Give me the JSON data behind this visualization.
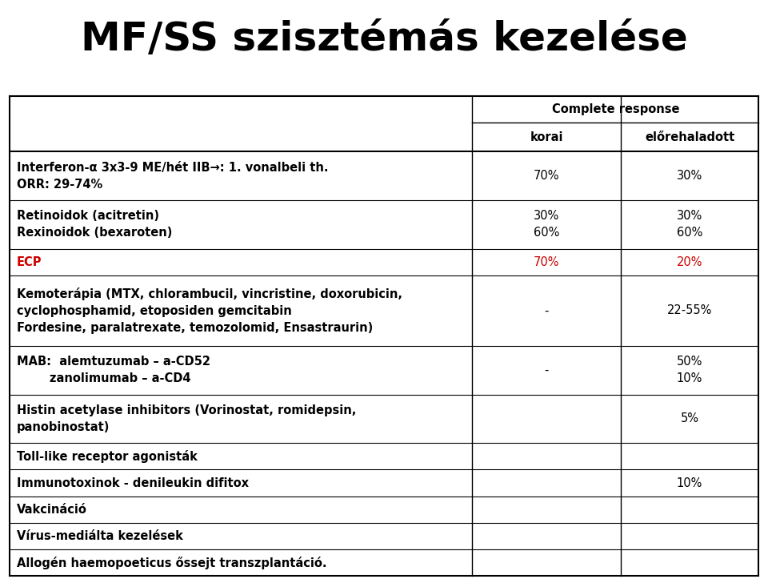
{
  "title": "MF/SS szisztémás kezelése",
  "header_main": "Complete response",
  "header_col1": "korai",
  "header_col2": "előrehaladott",
  "rows": [
    {
      "treatment": "Interferon-α 3x3-9 ME/hét IIB→: 1. vonalbeli th.\nORR: 29-74%",
      "korai": "70%",
      "elore": "30%",
      "korai_red": false,
      "elore_red": false,
      "treatment_red": false
    },
    {
      "treatment": "Retinoidok (acitretin)\nRexinoidok (bexaroten)",
      "korai": "30%\n60%",
      "elore": "30%\n60%",
      "korai_red": false,
      "elore_red": false,
      "treatment_red": false
    },
    {
      "treatment": "ECP",
      "korai": "70%",
      "elore": "20%",
      "korai_red": true,
      "elore_red": true,
      "treatment_red": true
    },
    {
      "treatment": "Kemoterápia (MTX, chlorambucil, vincristine, doxorubicin,\ncyclophosphamid, etoposiden gemcitabin\nFordesine, paralatrexate, temozolomid, Ensastraurin)",
      "korai": "-",
      "elore": "22-55%",
      "korai_red": false,
      "elore_red": false,
      "treatment_red": false
    },
    {
      "treatment": "MAB:  alemtuzumab – a-CD52\n        zanolimumab – a-CD4",
      "korai": "-",
      "elore": "50%\n10%",
      "korai_red": false,
      "elore_red": false,
      "treatment_red": false
    },
    {
      "treatment": "Histin acetylase inhibitors (Vorinostat, romidepsin,\npanobinostat)",
      "korai": "",
      "elore": "5%",
      "korai_red": false,
      "elore_red": false,
      "treatment_red": false
    },
    {
      "treatment": "Toll-like receptor agonisták",
      "korai": "",
      "elore": "",
      "korai_red": false,
      "elore_red": false,
      "treatment_red": false
    },
    {
      "treatment": "Immunotoxinok - denileukin difitox",
      "korai": "",
      "elore": "10%",
      "korai_red": false,
      "elore_red": false,
      "treatment_red": false
    },
    {
      "treatment": "Vakcináció",
      "korai": "",
      "elore": "",
      "korai_red": false,
      "elore_red": false,
      "treatment_red": false
    },
    {
      "treatment": "Vírus-mediálta kezelések",
      "korai": "",
      "elore": "",
      "korai_red": false,
      "elore_red": false,
      "treatment_red": false
    },
    {
      "treatment": "Allogén haemopoeticus őssejt transzplantáció.",
      "korai": "",
      "elore": "",
      "korai_red": false,
      "elore_red": false,
      "treatment_red": false
    }
  ],
  "bg_color": "#ffffff",
  "text_color": "#000000",
  "red_color": "#cc0000",
  "line_color": "#000000",
  "title_fontsize": 36,
  "header_fontsize": 10.5,
  "cell_fontsize": 10.5,
  "col_split": 0.615,
  "col2_split": 0.808
}
